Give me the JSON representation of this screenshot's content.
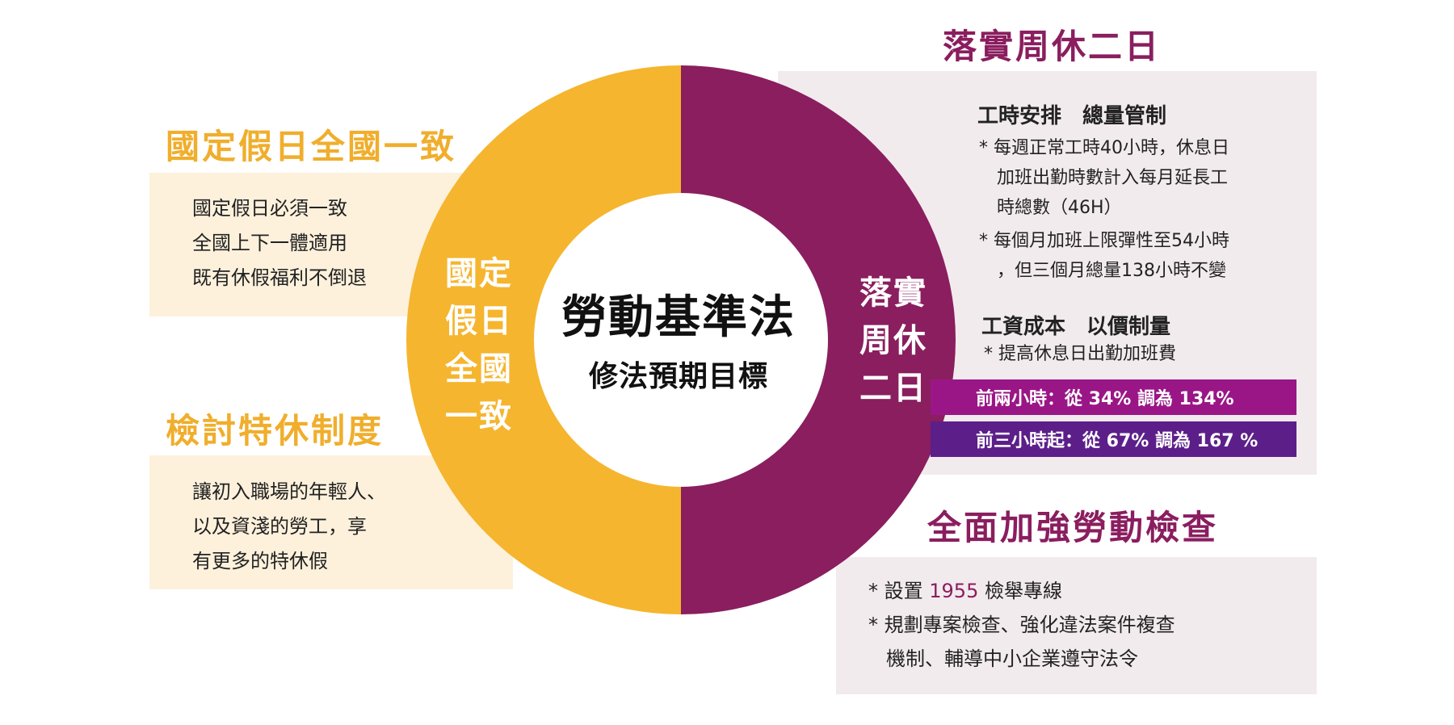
{
  "colors": {
    "gold": "#f5b52e",
    "purple": "#8a1e5f",
    "bar1": "#9a1687",
    "bar2": "#5c1f8a"
  },
  "center": {
    "title": "勞動基準法",
    "subtitle": "修法預期目標"
  },
  "ring": {
    "left_label": [
      "國定",
      "假日",
      "全國",
      "一致"
    ],
    "right_label": [
      "落實",
      "周休",
      "二日"
    ]
  },
  "holidays": {
    "heading": "國定假日全國一致",
    "lines": [
      "國定假日必須一致",
      "全國上下一體適用",
      "既有休假福利不倒退"
    ]
  },
  "special_leave": {
    "heading": "檢討特休制度",
    "lines": [
      "讓初入職場的年輕人、",
      "以及資淺的勞工，享",
      "有更多的特休假"
    ]
  },
  "two_day_weekend": {
    "heading": "落實周休二日",
    "hours_title": "工時安排　總量管制",
    "hours_bullets": [
      [
        "* 每週正常工時40小時，休息日",
        "加班出勤時數計入每月延長工",
        "時總數（46H）"
      ],
      [
        "* 每個月加班上限彈性至54小時",
        "，但三個月總量138小時不變"
      ]
    ],
    "wage_title": "工資成本　以價制量",
    "wage_bullet": "* 提高休息日出勤加班費",
    "rates": [
      "前兩小時：從 34% 調為 134%",
      "前三小時起：從 67% 調為 167 %"
    ]
  },
  "inspection": {
    "heading": "全面加強勞動檢查",
    "bullet1_prefix": "* 設置 ",
    "bullet1_number": "1955",
    "bullet1_suffix": " 檢舉專線",
    "bullet2": [
      "* 規劃專案檢查、強化違法案件複查",
      "機制、輔導中小企業遵守法令"
    ]
  }
}
